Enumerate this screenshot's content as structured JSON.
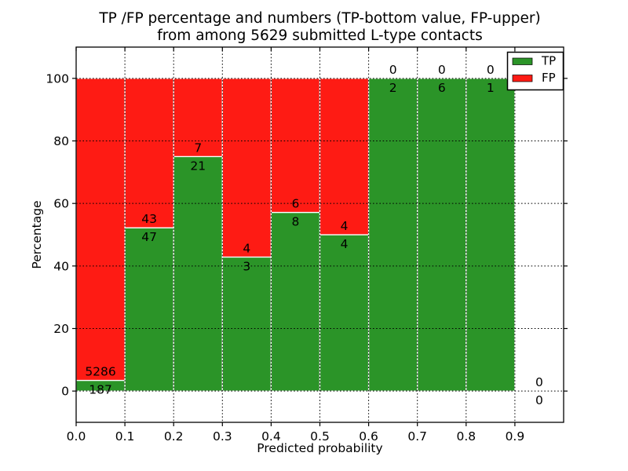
{
  "figure": {
    "title_line1": "TP /FP percentage and numbers (TP-bottom value, FP-upper)",
    "title_line2": "from among 5629 submitted L-type contacts"
  },
  "chart_data": {
    "type": "bar",
    "stacked": true,
    "title": "TP /FP percentage and numbers (TP-bottom value, FP-upper) from among 5629 submitted L-type contacts",
    "xlabel": "Predicted probability",
    "ylabel": "Percentage",
    "xlim": [
      0.0,
      1.0
    ],
    "ylim": [
      -10,
      110
    ],
    "xticks": [
      0.0,
      0.1,
      0.2,
      0.3,
      0.4,
      0.5,
      0.6,
      0.7,
      0.8,
      0.9
    ],
    "xtick_labels": [
      "0.0",
      "0.1",
      "0.2",
      "0.3",
      "0.4",
      "0.5",
      "0.6",
      "0.7",
      "0.8",
      "0.9"
    ],
    "yticks": [
      0,
      20,
      40,
      60,
      80,
      100
    ],
    "grid": true,
    "grid_style": "dotted",
    "bar_edge_color": "#ffffff",
    "series": [
      {
        "name": "TP",
        "color": "#2b9428"
      },
      {
        "name": "FP",
        "color": "#fe1b14"
      }
    ],
    "bins": [
      {
        "range": [
          0.0,
          0.1
        ],
        "tp": 187,
        "fp": 5286,
        "tp_pct": 3.42,
        "fp_pct": 96.58
      },
      {
        "range": [
          0.1,
          0.2
        ],
        "tp": 47,
        "fp": 43,
        "tp_pct": 52.22,
        "fp_pct": 47.78
      },
      {
        "range": [
          0.2,
          0.3
        ],
        "tp": 21,
        "fp": 7,
        "tp_pct": 75.0,
        "fp_pct": 25.0
      },
      {
        "range": [
          0.3,
          0.4
        ],
        "tp": 3,
        "fp": 4,
        "tp_pct": 42.86,
        "fp_pct": 57.14
      },
      {
        "range": [
          0.4,
          0.5
        ],
        "tp": 8,
        "fp": 6,
        "tp_pct": 57.14,
        "fp_pct": 42.86
      },
      {
        "range": [
          0.5,
          0.6
        ],
        "tp": 4,
        "fp": 4,
        "tp_pct": 50.0,
        "fp_pct": 50.0
      },
      {
        "range": [
          0.6,
          0.7
        ],
        "tp": 2,
        "fp": 0,
        "tp_pct": 100.0,
        "fp_pct": 0.0
      },
      {
        "range": [
          0.7,
          0.8
        ],
        "tp": 6,
        "fp": 0,
        "tp_pct": 100.0,
        "fp_pct": 0.0
      },
      {
        "range": [
          0.8,
          0.9
        ],
        "tp": 1,
        "fp": 0,
        "tp_pct": 100.0,
        "fp_pct": 0.0
      },
      {
        "range": [
          0.9,
          1.0
        ],
        "tp": 0,
        "fp": 0,
        "tp_pct": 0.0,
        "fp_pct": 0.0
      }
    ],
    "legend": {
      "position": "upper right",
      "entries": [
        {
          "label": "TP",
          "color": "#2b9428"
        },
        {
          "label": "FP",
          "color": "#fe1b14"
        }
      ]
    }
  }
}
